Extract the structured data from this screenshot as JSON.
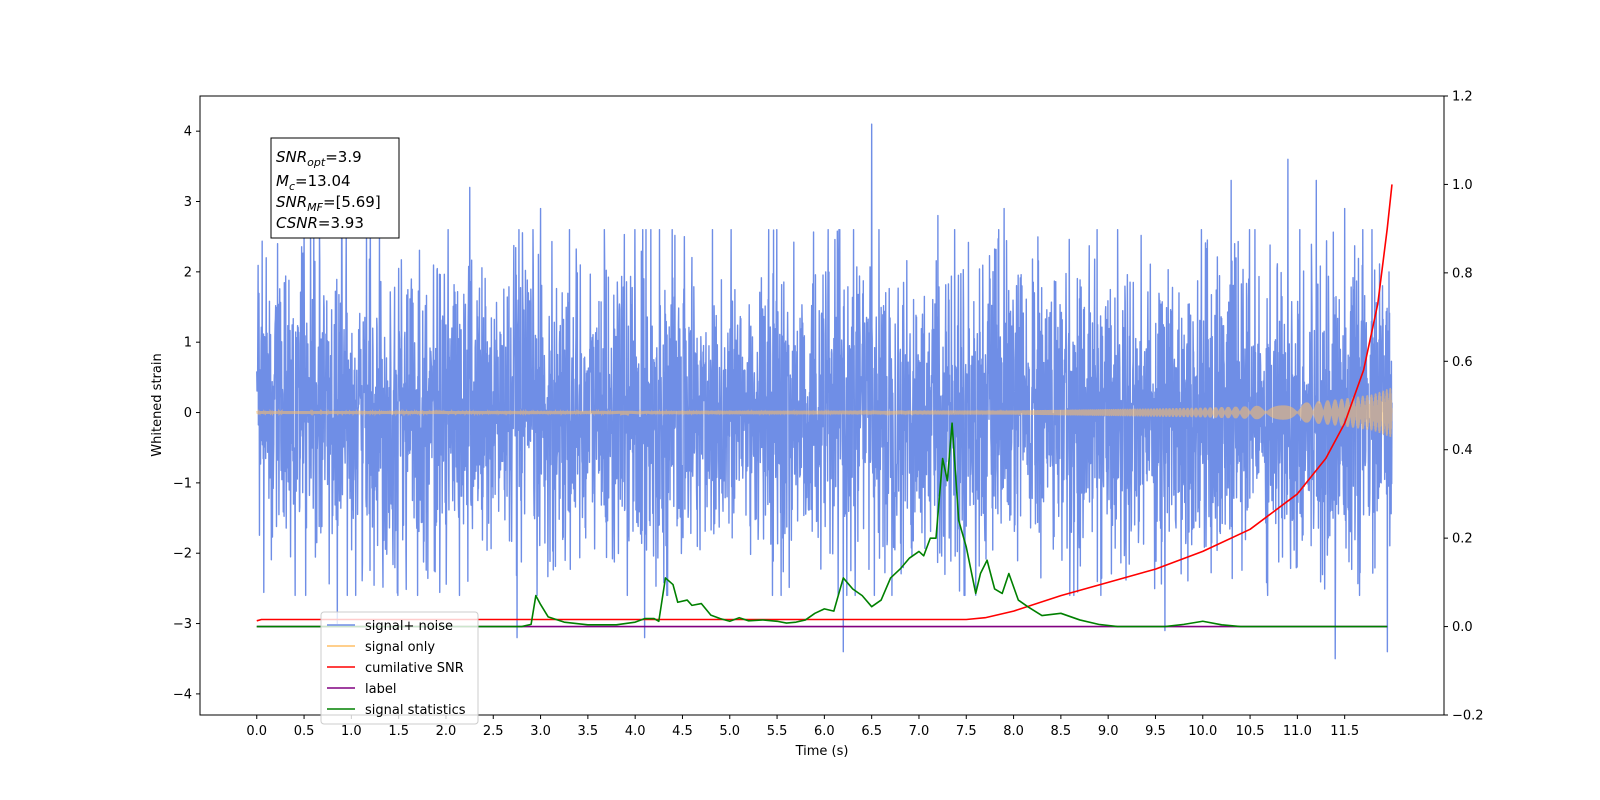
{
  "chart_data": {
    "type": "line",
    "xlabel": "Time (s)",
    "ylabel": "Whitened strain",
    "xlim": [
      -0.6,
      12.55
    ],
    "ylim": [
      -4.3,
      4.5
    ],
    "ylim_right": [
      -0.2,
      1.2
    ],
    "x_ticks": [
      0.0,
      0.5,
      1.0,
      1.5,
      2.0,
      2.5,
      3.0,
      3.5,
      4.0,
      4.5,
      5.0,
      5.5,
      6.0,
      6.5,
      7.0,
      7.5,
      8.0,
      8.5,
      9.0,
      9.5,
      10.0,
      10.5,
      11.0,
      11.5
    ],
    "x_tick_labels": [
      "0.0",
      "0.5",
      "1.0",
      "1.5",
      "2.0",
      "2.5",
      "3.0",
      "3.5",
      "4.0",
      "4.5",
      "5.0",
      "5.5",
      "6.0",
      "6.5",
      "7.0",
      "7.5",
      "8.0",
      "8.5",
      "9.0",
      "9.5",
      "10.0",
      "10.5",
      "11.0",
      "11.5"
    ],
    "y_ticks": [
      -4,
      -3,
      -2,
      -1,
      0,
      1,
      2,
      3,
      4
    ],
    "y_tick_labels": [
      "−4",
      "−3",
      "−2",
      "−1",
      "0",
      "1",
      "2",
      "3",
      "4"
    ],
    "y_right_ticks": [
      -0.2,
      0.0,
      0.2,
      0.4,
      0.6,
      0.8,
      1.0,
      1.2
    ],
    "y_right_tick_labels": [
      "−0.2",
      "0.0",
      "0.2",
      "0.4",
      "0.6",
      "0.8",
      "1.0",
      "1.2"
    ],
    "grid": false,
    "legend": {
      "placement": "lower-left",
      "entries": [
        {
          "label": "signal+ noise",
          "color": "#6f8ee6"
        },
        {
          "label": "signal only",
          "color": "#ffbf66"
        },
        {
          "label": "cumilative SNR",
          "color": "#ff0000"
        },
        {
          "label": "label",
          "color": "#800080"
        },
        {
          "label": "signal statistics",
          "color": "#008000"
        }
      ]
    },
    "annotation": {
      "snr_opt_value": "3.9",
      "mc_value": "13.04",
      "snr_mf_value": "[5.69]",
      "csnr_value": "3.93"
    },
    "series": [
      {
        "name": "signal+ noise",
        "axis": "left",
        "color": "#6f8ee6",
        "style": "noise band",
        "x_range": [
          0.0,
          12.0
        ],
        "typical_amplitude": [
          -1.7,
          1.7
        ],
        "notable_peaks": [
          {
            "x": 0.1,
            "y": 2.2
          },
          {
            "x": 0.22,
            "y": 2.4
          },
          {
            "x": 0.5,
            "y": 2.6
          },
          {
            "x": 0.9,
            "y": 2.9
          },
          {
            "x": 1.2,
            "y": 3.0
          },
          {
            "x": 2.25,
            "y": 3.2
          },
          {
            "x": 3.0,
            "y": 2.9
          },
          {
            "x": 4.1,
            "y": 2.9
          },
          {
            "x": 6.5,
            "y": 4.1
          },
          {
            "x": 7.2,
            "y": 2.8
          },
          {
            "x": 7.9,
            "y": 2.9
          },
          {
            "x": 10.3,
            "y": 3.3
          },
          {
            "x": 10.9,
            "y": 3.6
          },
          {
            "x": 11.2,
            "y": 3.3
          },
          {
            "x": 11.5,
            "y": 2.9
          }
        ],
        "notable_dips": [
          {
            "x": 0.85,
            "y": -3.0
          },
          {
            "x": 2.75,
            "y": -3.2
          },
          {
            "x": 4.1,
            "y": -3.2
          },
          {
            "x": 6.2,
            "y": -3.4
          },
          {
            "x": 9.6,
            "y": -3.1
          },
          {
            "x": 11.4,
            "y": -3.5
          },
          {
            "x": 11.95,
            "y": -3.4
          }
        ]
      },
      {
        "name": "signal only",
        "axis": "left",
        "color": "#ffbf66",
        "style": "chirp",
        "x_range": [
          0.0,
          12.0
        ],
        "envelope": [
          {
            "x": 0.0,
            "amp": 0.02
          },
          {
            "x": 8.0,
            "amp": 0.03
          },
          {
            "x": 9.0,
            "amp": 0.05
          },
          {
            "x": 10.0,
            "amp": 0.07
          },
          {
            "x": 10.5,
            "amp": 0.09
          },
          {
            "x": 11.0,
            "amp": 0.13
          },
          {
            "x": 11.5,
            "amp": 0.2
          },
          {
            "x": 11.8,
            "amp": 0.26
          },
          {
            "x": 12.0,
            "amp": 0.36
          }
        ]
      },
      {
        "name": "cumilative SNR",
        "axis": "right",
        "color": "#ff0000",
        "points": [
          {
            "x": 0.0,
            "y": 0.013
          },
          {
            "x": 0.05,
            "y": 0.016
          },
          {
            "x": 7.5,
            "y": 0.016
          },
          {
            "x": 7.7,
            "y": 0.02
          },
          {
            "x": 8.0,
            "y": 0.035
          },
          {
            "x": 8.5,
            "y": 0.07
          },
          {
            "x": 9.0,
            "y": 0.1
          },
          {
            "x": 9.5,
            "y": 0.13
          },
          {
            "x": 10.0,
            "y": 0.17
          },
          {
            "x": 10.5,
            "y": 0.22
          },
          {
            "x": 11.0,
            "y": 0.3
          },
          {
            "x": 11.3,
            "y": 0.38
          },
          {
            "x": 11.5,
            "y": 0.46
          },
          {
            "x": 11.7,
            "y": 0.58
          },
          {
            "x": 11.85,
            "y": 0.73
          },
          {
            "x": 11.95,
            "y": 0.9
          },
          {
            "x": 12.0,
            "y": 1.0
          }
        ]
      },
      {
        "name": "label",
        "axis": "right",
        "color": "#800080",
        "points": [
          {
            "x": 0.0,
            "y": 0.0
          },
          {
            "x": 11.95,
            "y": 0.0
          }
        ]
      },
      {
        "name": "signal statistics",
        "axis": "right",
        "color": "#008000",
        "points": [
          {
            "x": 0.0,
            "y": 0.0
          },
          {
            "x": 2.8,
            "y": 0.0
          },
          {
            "x": 2.9,
            "y": 0.005
          },
          {
            "x": 2.95,
            "y": 0.07
          },
          {
            "x": 3.0,
            "y": 0.05
          },
          {
            "x": 3.08,
            "y": 0.022
          },
          {
            "x": 3.25,
            "y": 0.01
          },
          {
            "x": 3.5,
            "y": 0.004
          },
          {
            "x": 3.8,
            "y": 0.004
          },
          {
            "x": 4.0,
            "y": 0.01
          },
          {
            "x": 4.1,
            "y": 0.018
          },
          {
            "x": 4.2,
            "y": 0.018
          },
          {
            "x": 4.25,
            "y": 0.012
          },
          {
            "x": 4.32,
            "y": 0.11
          },
          {
            "x": 4.4,
            "y": 0.095
          },
          {
            "x": 4.45,
            "y": 0.055
          },
          {
            "x": 4.55,
            "y": 0.06
          },
          {
            "x": 4.6,
            "y": 0.048
          },
          {
            "x": 4.7,
            "y": 0.052
          },
          {
            "x": 4.8,
            "y": 0.026
          },
          {
            "x": 4.9,
            "y": 0.018
          },
          {
            "x": 5.0,
            "y": 0.012
          },
          {
            "x": 5.1,
            "y": 0.02
          },
          {
            "x": 5.2,
            "y": 0.013
          },
          {
            "x": 5.35,
            "y": 0.015
          },
          {
            "x": 5.5,
            "y": 0.012
          },
          {
            "x": 5.6,
            "y": 0.008
          },
          {
            "x": 5.7,
            "y": 0.01
          },
          {
            "x": 5.8,
            "y": 0.015
          },
          {
            "x": 5.9,
            "y": 0.03
          },
          {
            "x": 6.0,
            "y": 0.04
          },
          {
            "x": 6.1,
            "y": 0.035
          },
          {
            "x": 6.2,
            "y": 0.11
          },
          {
            "x": 6.3,
            "y": 0.085
          },
          {
            "x": 6.4,
            "y": 0.07
          },
          {
            "x": 6.5,
            "y": 0.045
          },
          {
            "x": 6.6,
            "y": 0.06
          },
          {
            "x": 6.7,
            "y": 0.11
          },
          {
            "x": 6.8,
            "y": 0.13
          },
          {
            "x": 6.9,
            "y": 0.155
          },
          {
            "x": 7.0,
            "y": 0.17
          },
          {
            "x": 7.05,
            "y": 0.16
          },
          {
            "x": 7.12,
            "y": 0.2
          },
          {
            "x": 7.18,
            "y": 0.2
          },
          {
            "x": 7.25,
            "y": 0.38
          },
          {
            "x": 7.3,
            "y": 0.33
          },
          {
            "x": 7.35,
            "y": 0.46
          },
          {
            "x": 7.42,
            "y": 0.24
          },
          {
            "x": 7.5,
            "y": 0.18
          },
          {
            "x": 7.6,
            "y": 0.075
          },
          {
            "x": 7.65,
            "y": 0.12
          },
          {
            "x": 7.72,
            "y": 0.15
          },
          {
            "x": 7.8,
            "y": 0.085
          },
          {
            "x": 7.88,
            "y": 0.075
          },
          {
            "x": 7.95,
            "y": 0.12
          },
          {
            "x": 8.05,
            "y": 0.06
          },
          {
            "x": 8.15,
            "y": 0.045
          },
          {
            "x": 8.3,
            "y": 0.025
          },
          {
            "x": 8.5,
            "y": 0.03
          },
          {
            "x": 8.7,
            "y": 0.015
          },
          {
            "x": 8.9,
            "y": 0.005
          },
          {
            "x": 9.1,
            "y": 0.0
          },
          {
            "x": 9.6,
            "y": 0.0
          },
          {
            "x": 9.8,
            "y": 0.005
          },
          {
            "x": 10.0,
            "y": 0.012
          },
          {
            "x": 10.2,
            "y": 0.004
          },
          {
            "x": 10.4,
            "y": 0.0
          },
          {
            "x": 11.95,
            "y": 0.0
          }
        ]
      }
    ]
  }
}
